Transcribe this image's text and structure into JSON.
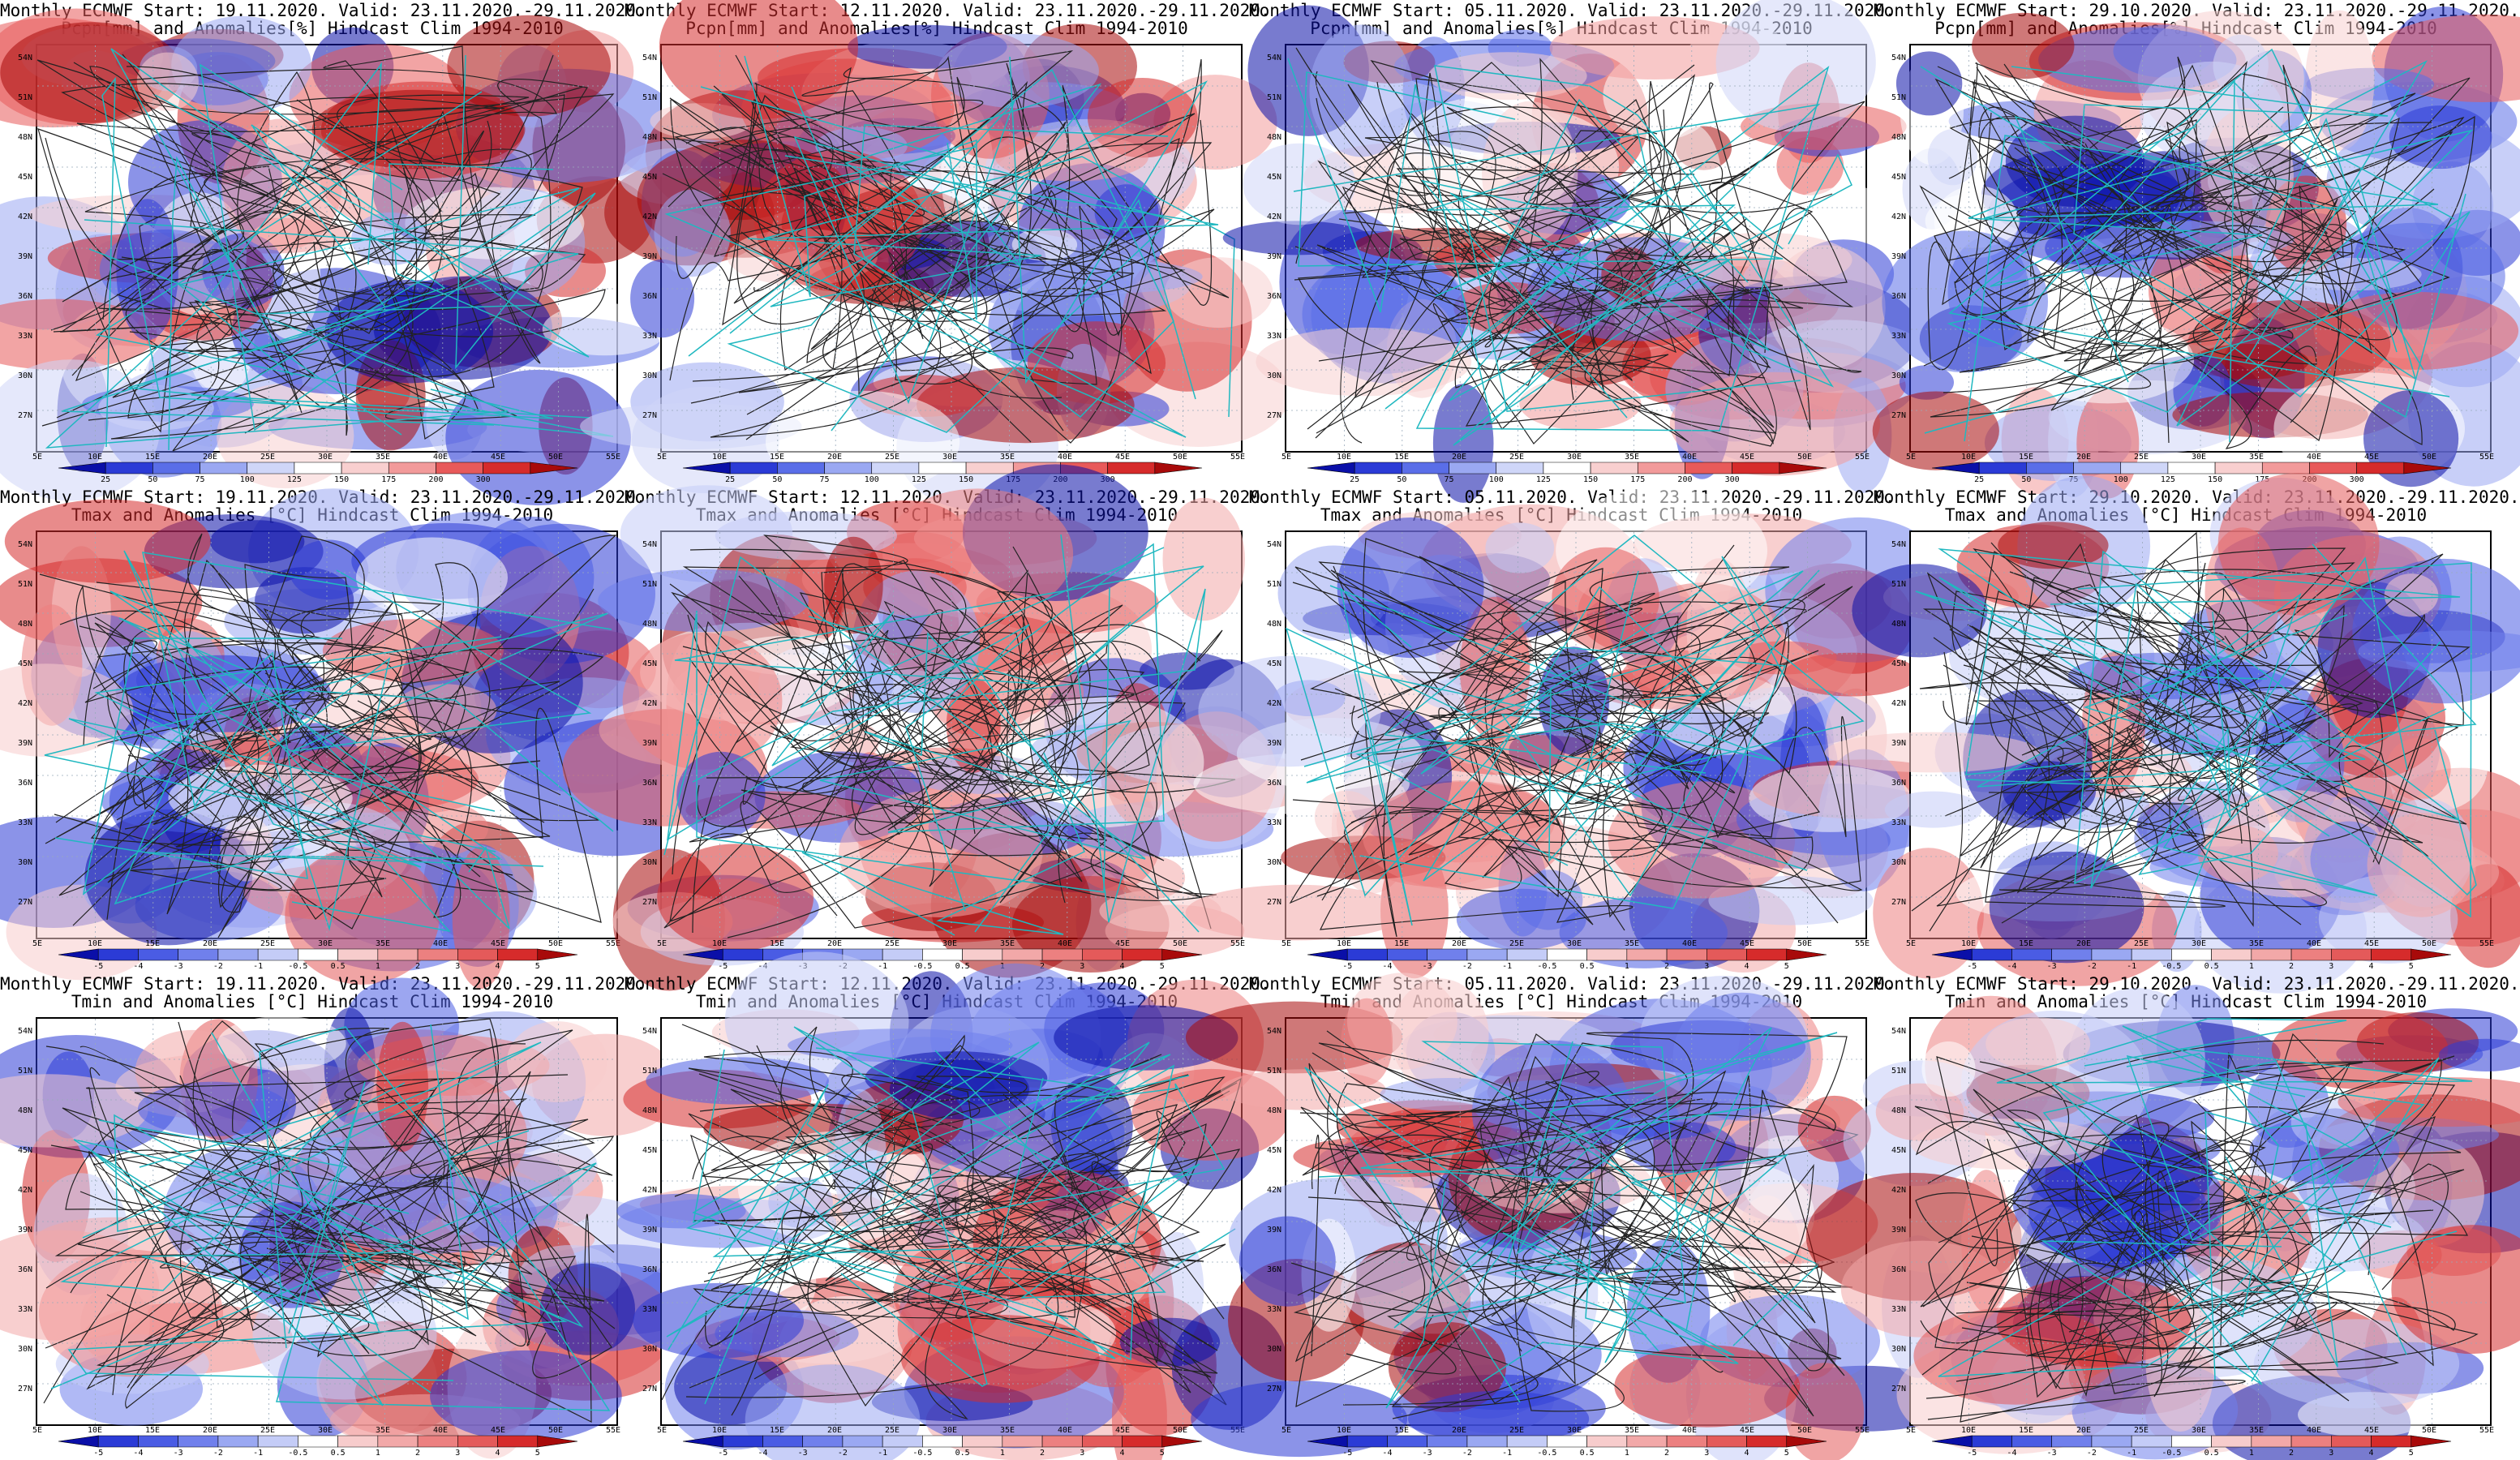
{
  "panels": [
    {
      "row": 0,
      "col": 0,
      "title1": "Monthly ECMWF Start: 19.11.2020. Valid: 23.11.2020.-29.11.2020.",
      "title2": "Pcpn[mm] and Anomalies[%] Hindcast Clim 1994-2010",
      "scale": "pcpn",
      "seed": 3
    },
    {
      "row": 0,
      "col": 1,
      "title1": "Monthly ECMWF Start: 12.11.2020. Valid: 23.11.2020.-29.11.2020.",
      "title2": "Pcpn[mm] and Anomalies[%] Hindcast Clim 1994-2010",
      "scale": "pcpn",
      "seed": 7
    },
    {
      "row": 0,
      "col": 2,
      "title1": "Monthly ECMWF Start: 05.11.2020. Valid: 23.11.2020.-29.11.2020.",
      "title2": "Pcpn[mm] and Anomalies[%] Hindcast Clim 1994-2010",
      "scale": "pcpn",
      "seed": 11
    },
    {
      "row": 0,
      "col": 3,
      "title1": "Monthly ECMWF Start: 29.10.2020. Valid: 23.11.2020.-29.11.2020.",
      "title2": "Pcpn[mm] and Anomalies[%] Hindcast Clim 1994-2010",
      "scale": "pcpn",
      "seed": 17
    },
    {
      "row": 1,
      "col": 0,
      "title1": "Monthly ECMWF Start: 19.11.2020. Valid: 23.11.2020.-29.11.2020.",
      "title2": "Tmax and Anomalies [°C] Hindcast Clim 1994-2010",
      "scale": "temp",
      "seed": 23
    },
    {
      "row": 1,
      "col": 1,
      "title1": "Monthly ECMWF Start: 12.11.2020. Valid: 23.11.2020.-29.11.2020.",
      "title2": "Tmax and Anomalies [°C] Hindcast Clim 1994-2010",
      "scale": "temp",
      "seed": 29
    },
    {
      "row": 1,
      "col": 2,
      "title1": "Monthly ECMWF Start: 05.11.2020. Valid: 23.11.2020.-29.11.2020.",
      "title2": "Tmax and Anomalies [°C] Hindcast Clim 1994-2010",
      "scale": "temp",
      "seed": 31
    },
    {
      "row": 1,
      "col": 3,
      "title1": "Monthly ECMWF Start: 29.10.2020. Valid: 23.11.2020.-29.11.2020.",
      "title2": "Tmax and Anomalies [°C] Hindcast Clim 1994-2010",
      "scale": "temp",
      "seed": 37
    },
    {
      "row": 2,
      "col": 0,
      "title1": "Monthly ECMWF Start: 19.11.2020. Valid: 23.11.2020.-29.11.2020.",
      "title2": "Tmin and Anomalies [°C] Hindcast Clim 1994-2010",
      "scale": "temp",
      "seed": 41
    },
    {
      "row": 2,
      "col": 1,
      "title1": "Monthly ECMWF Start: 12.11.2020. Valid: 23.11.2020.-29.11.2020.",
      "title2": "Tmin and Anomalies [°C] Hindcast Clim 1994-2010",
      "scale": "temp",
      "seed": 43
    },
    {
      "row": 2,
      "col": 2,
      "title1": "Monthly ECMWF Start: 05.11.2020. Valid: 23.11.2020.-29.11.2020.",
      "title2": "Tmin and Anomalies [°C] Hindcast Clim 1994-2010",
      "scale": "temp",
      "seed": 47
    },
    {
      "row": 2,
      "col": 3,
      "title1": "Monthly ECMWF Start: 29.10.2020. Valid: 23.11.2020.-29.11.2020.",
      "title2": "Tmin and Anomalies [°C] Hindcast Clim 1994-2010",
      "scale": "temp",
      "seed": 53
    }
  ],
  "lat_labels": [
    "54N",
    "51N",
    "48N",
    "45N",
    "42N",
    "39N",
    "36N",
    "33N",
    "30N",
    "27N"
  ],
  "lon_labels": [
    "5E",
    "10E",
    "15E",
    "20E",
    "25E",
    "30E",
    "35E",
    "40E",
    "45E",
    "50E",
    "55E"
  ],
  "scales": {
    "pcpn": {
      "ticks": [
        "25",
        "50",
        "75",
        "100",
        "125",
        "150",
        "175",
        "200",
        "300"
      ],
      "colors": [
        "#0a0fa8",
        "#2b3bd6",
        "#5a6ee8",
        "#9aa8f2",
        "#cfd6f8",
        "#ffffff",
        "#f8cfcf",
        "#f29a9a",
        "#e85a5a",
        "#d62b2b",
        "#a80a0a"
      ]
    },
    "temp": {
      "ticks": [
        "-5",
        "-4",
        "-3",
        "-2",
        "-1",
        "-0.5",
        "0.5",
        "1",
        "2",
        "3",
        "4",
        "5"
      ],
      "colors": [
        "#0a0fa8",
        "#2b3bd6",
        "#4a5ce4",
        "#7080ec",
        "#9aa8f2",
        "#c4ccf7",
        "#ffffff",
        "#f7cccc",
        "#f2a8a8",
        "#ec8080",
        "#e45a5a",
        "#d62b2b",
        "#a80a0a"
      ]
    }
  }
}
